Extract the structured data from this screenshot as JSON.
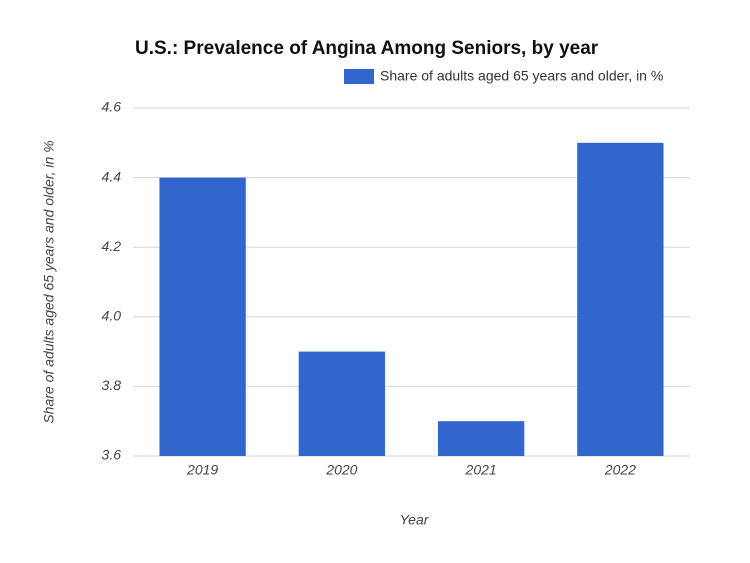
{
  "chart_data": {
    "type": "bar",
    "title": "U.S.: Prevalence of Angina Among Seniors, by year",
    "x_label": "Year",
    "y_label": "Share of adults aged 65 years and older, in %",
    "categories": [
      "2019",
      "2020",
      "2021",
      "2022"
    ],
    "series": [
      {
        "name": "Share of adults aged 65 years and older, in %",
        "color": "#3366cc",
        "values": [
          4.4,
          3.9,
          3.7,
          4.5
        ]
      }
    ],
    "ylim": [
      3.6,
      4.6
    ],
    "yticks": [
      3.6,
      3.8,
      {
        "value": 4,
        "label": "4.0"
      },
      4.2,
      4.4,
      4.6
    ],
    "grid": true,
    "legend": "top-right"
  }
}
